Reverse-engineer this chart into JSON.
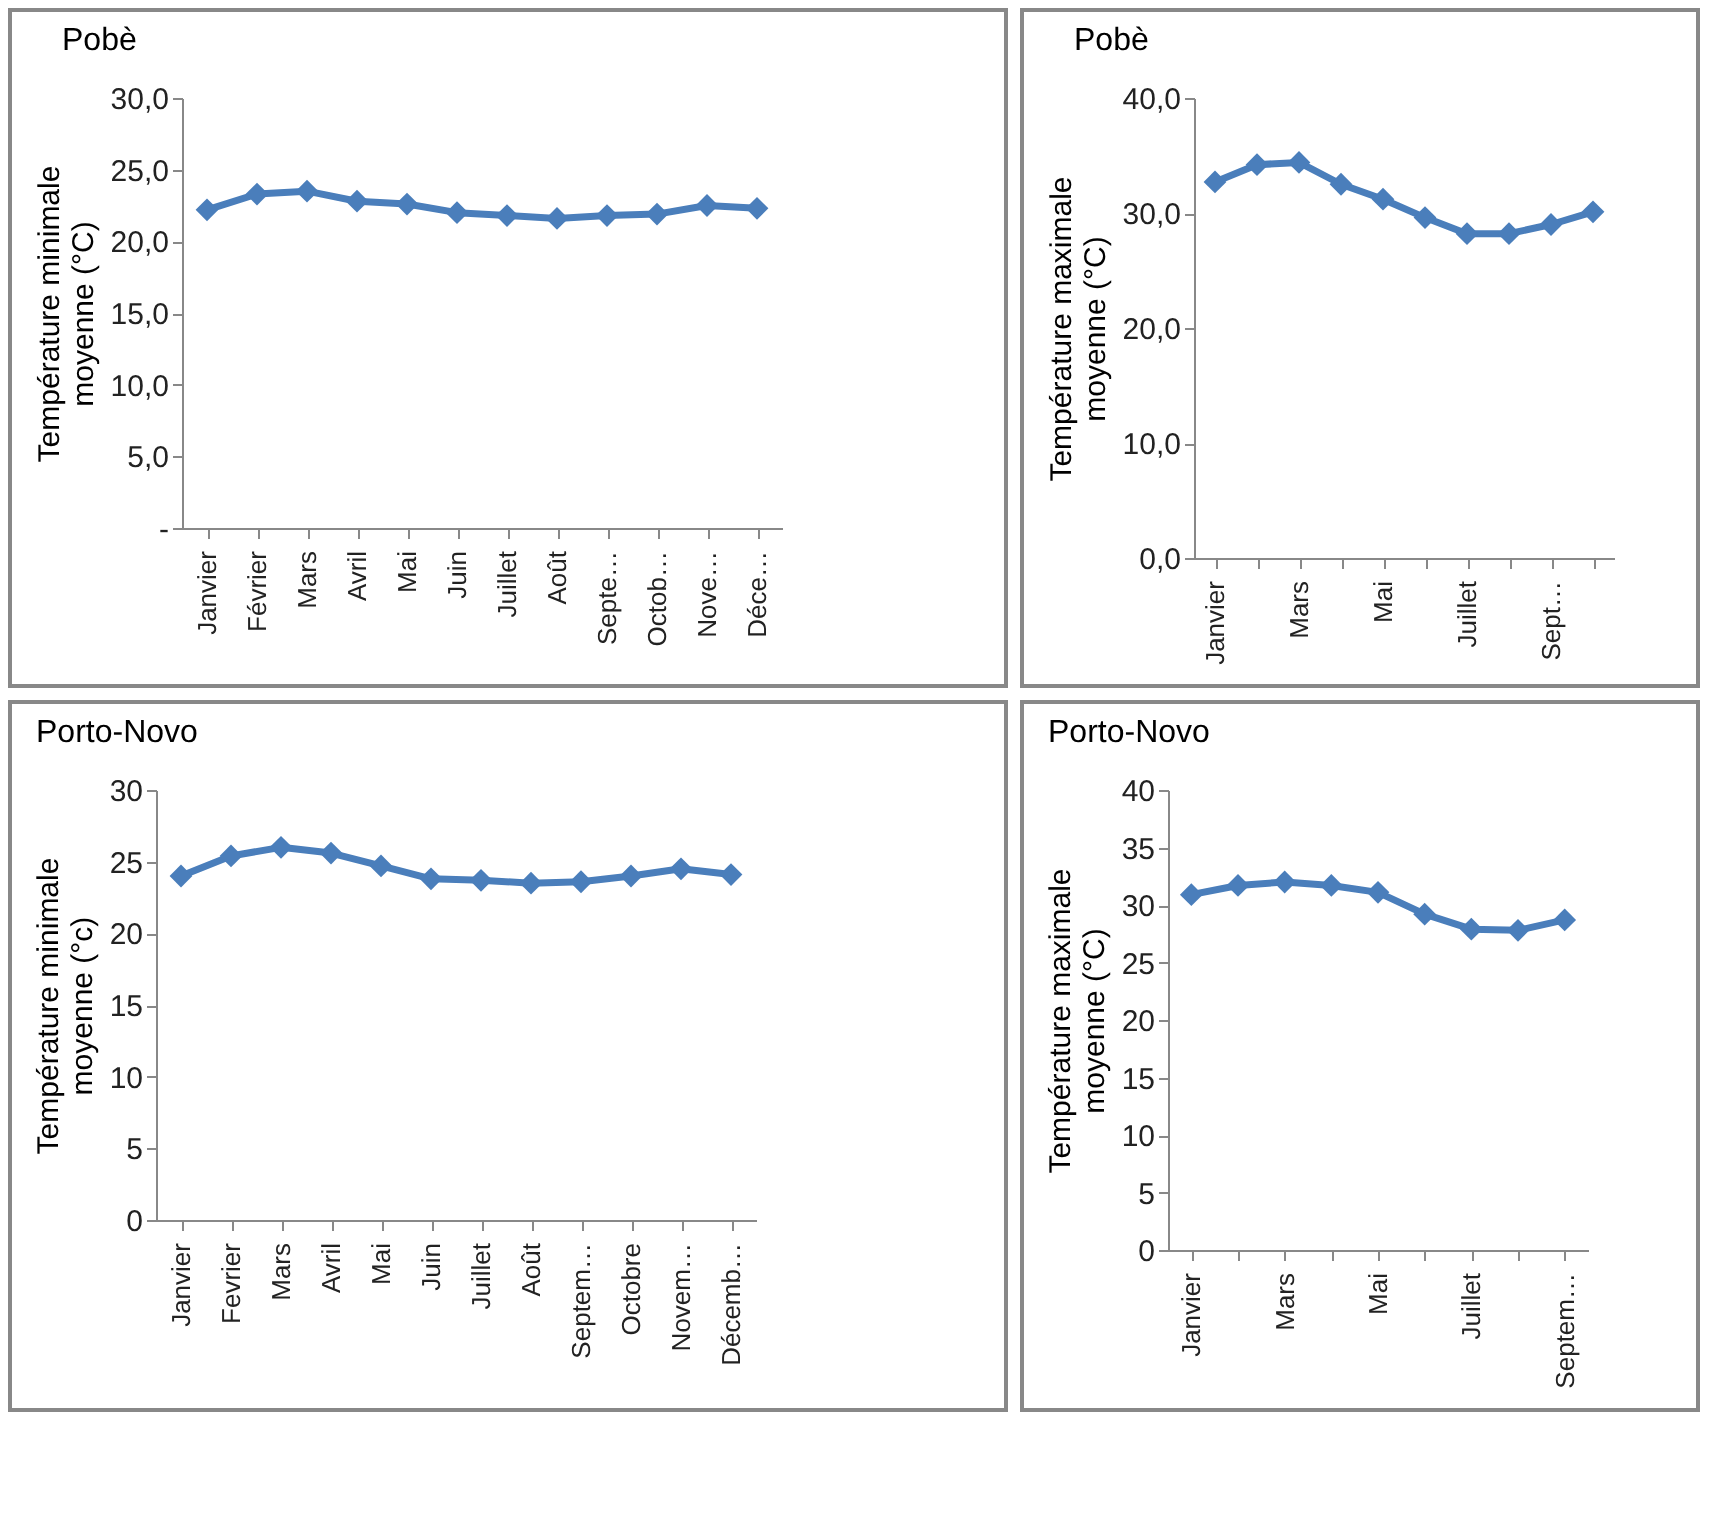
{
  "chart_data": [
    {
      "type": "line",
      "title": "Pobè",
      "ylabel": "Température minimale moyenne (°C)",
      "categories": [
        "Janvier",
        "Février",
        "Mars",
        "Avril",
        "Mai",
        "Juin",
        "Juillet",
        "Août",
        "Septe…",
        "Octob…",
        "Nove…",
        "Déce…"
      ],
      "series": [
        {
          "color": "#4a7ebb",
          "values": [
            22.2,
            23.3,
            23.5,
            22.8,
            22.6,
            22.0,
            21.8,
            21.6,
            21.8,
            21.9,
            22.5,
            22.3
          ]
        }
      ],
      "ylim": [
        0,
        30
      ],
      "yticks": [
        {
          "value": 0,
          "label": "-"
        },
        {
          "value": 5,
          "label": "5,0"
        },
        {
          "value": 10,
          "label": "10,0"
        },
        {
          "value": 15,
          "label": "15,0"
        },
        {
          "value": 20,
          "label": "20,0"
        },
        {
          "value": 25,
          "label": "25,0"
        },
        {
          "value": 30,
          "label": "30,0"
        }
      ],
      "marker": "diamond",
      "line_style": "solid"
    },
    {
      "type": "line",
      "title": "Pobè",
      "ylabel": "Température maximale moyenne (°C)",
      "categories": [
        "Janvier",
        null,
        "Mars",
        null,
        "Mai",
        null,
        "Juillet",
        null,
        "Sept…",
        null
      ],
      "series": [
        {
          "color": "#4a7ebb",
          "values": [
            32.7,
            34.2,
            34.4,
            32.5,
            31.2,
            29.6,
            28.2,
            28.2,
            29.0,
            30.1
          ]
        }
      ],
      "ylim": [
        0,
        40
      ],
      "yticks": [
        {
          "value": 0,
          "label": "0,0"
        },
        {
          "value": 10,
          "label": "10,0"
        },
        {
          "value": 20,
          "label": "20,0"
        },
        {
          "value": 30,
          "label": "30,0"
        },
        {
          "value": 40,
          "label": "40,0"
        }
      ],
      "marker": "diamond",
      "line_style": "solid"
    },
    {
      "type": "line",
      "title": "Porto-Novo",
      "ylabel": "Température minimale moyenne (°c)",
      "categories": [
        "Janvier",
        "Fevrier",
        "Mars",
        "Avril",
        "Mai",
        "Juin",
        "Juillet",
        "Août",
        "Septem…",
        "Octobre",
        "Novem…",
        "Décemb…"
      ],
      "series": [
        {
          "color": "#4a7ebb",
          "values": [
            24.0,
            25.4,
            26.0,
            25.6,
            24.7,
            23.8,
            23.7,
            23.5,
            23.6,
            24.0,
            24.5,
            24.1
          ]
        }
      ],
      "ylim": [
        0,
        30
      ],
      "yticks": [
        0,
        5,
        10,
        15,
        20,
        25,
        30
      ],
      "marker": "diamond",
      "line_style": "solid"
    },
    {
      "type": "line",
      "title": "Porto-Novo",
      "ylabel": "Température maximale moyenne (°C)",
      "categories": [
        "Janvier",
        null,
        "Mars",
        null,
        "Mai",
        null,
        "Juillet",
        null,
        "Septem…"
      ],
      "series": [
        {
          "color": "#4a7ebb",
          "values": [
            30.9,
            31.7,
            32.0,
            31.7,
            31.1,
            29.2,
            27.9,
            27.8,
            28.7
          ]
        }
      ],
      "ylim": [
        0,
        40
      ],
      "yticks": [
        0,
        5,
        10,
        15,
        20,
        25,
        30,
        35,
        40
      ],
      "marker": "diamond",
      "line_style": "solid"
    }
  ]
}
